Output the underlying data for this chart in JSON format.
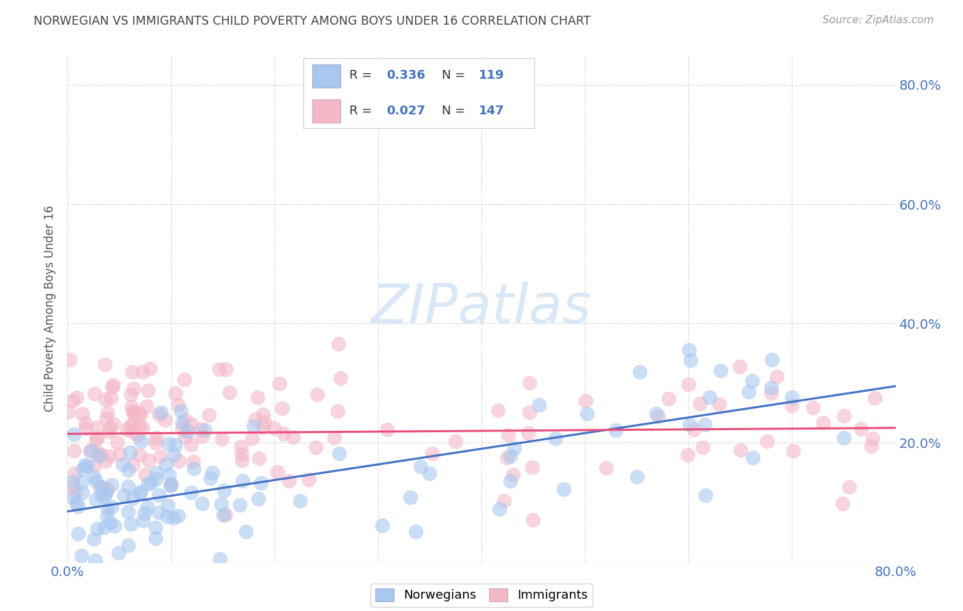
{
  "title": "NORWEGIAN VS IMMIGRANTS CHILD POVERTY AMONG BOYS UNDER 16 CORRELATION CHART",
  "source": "Source: ZipAtlas.com",
  "ylabel": "Child Poverty Among Boys Under 16",
  "xlim": [
    0.0,
    0.8
  ],
  "ylim": [
    0.0,
    0.85
  ],
  "ytick_vals": [
    0.0,
    0.2,
    0.4,
    0.6,
    0.8
  ],
  "xtick_vals": [
    0.0,
    0.1,
    0.2,
    0.3,
    0.4,
    0.5,
    0.6,
    0.7,
    0.8
  ],
  "legend_r_norwegian": "0.336",
  "legend_n_norwegian": "119",
  "legend_r_immigrant": "0.027",
  "legend_n_immigrant": "147",
  "norwegian_color": "#a8c8f0",
  "immigrant_color": "#f4b8c8",
  "line_norwegian_color": "#4472c4",
  "line_immigrant_color": "#e8507a",
  "watermark_text": "ZIPatlas",
  "background_color": "#ffffff",
  "title_color": "#444444",
  "axis_label_color": "#555555",
  "tick_label_color": "#4472c4",
  "grid_color": "#cccccc",
  "seed": 42,
  "nor_line_x0": 0.0,
  "nor_line_y0": 0.085,
  "nor_line_x1": 0.8,
  "nor_line_y1": 0.295,
  "imm_line_x0": 0.0,
  "imm_line_y0": 0.215,
  "imm_line_x1": 0.8,
  "imm_line_y1": 0.225
}
